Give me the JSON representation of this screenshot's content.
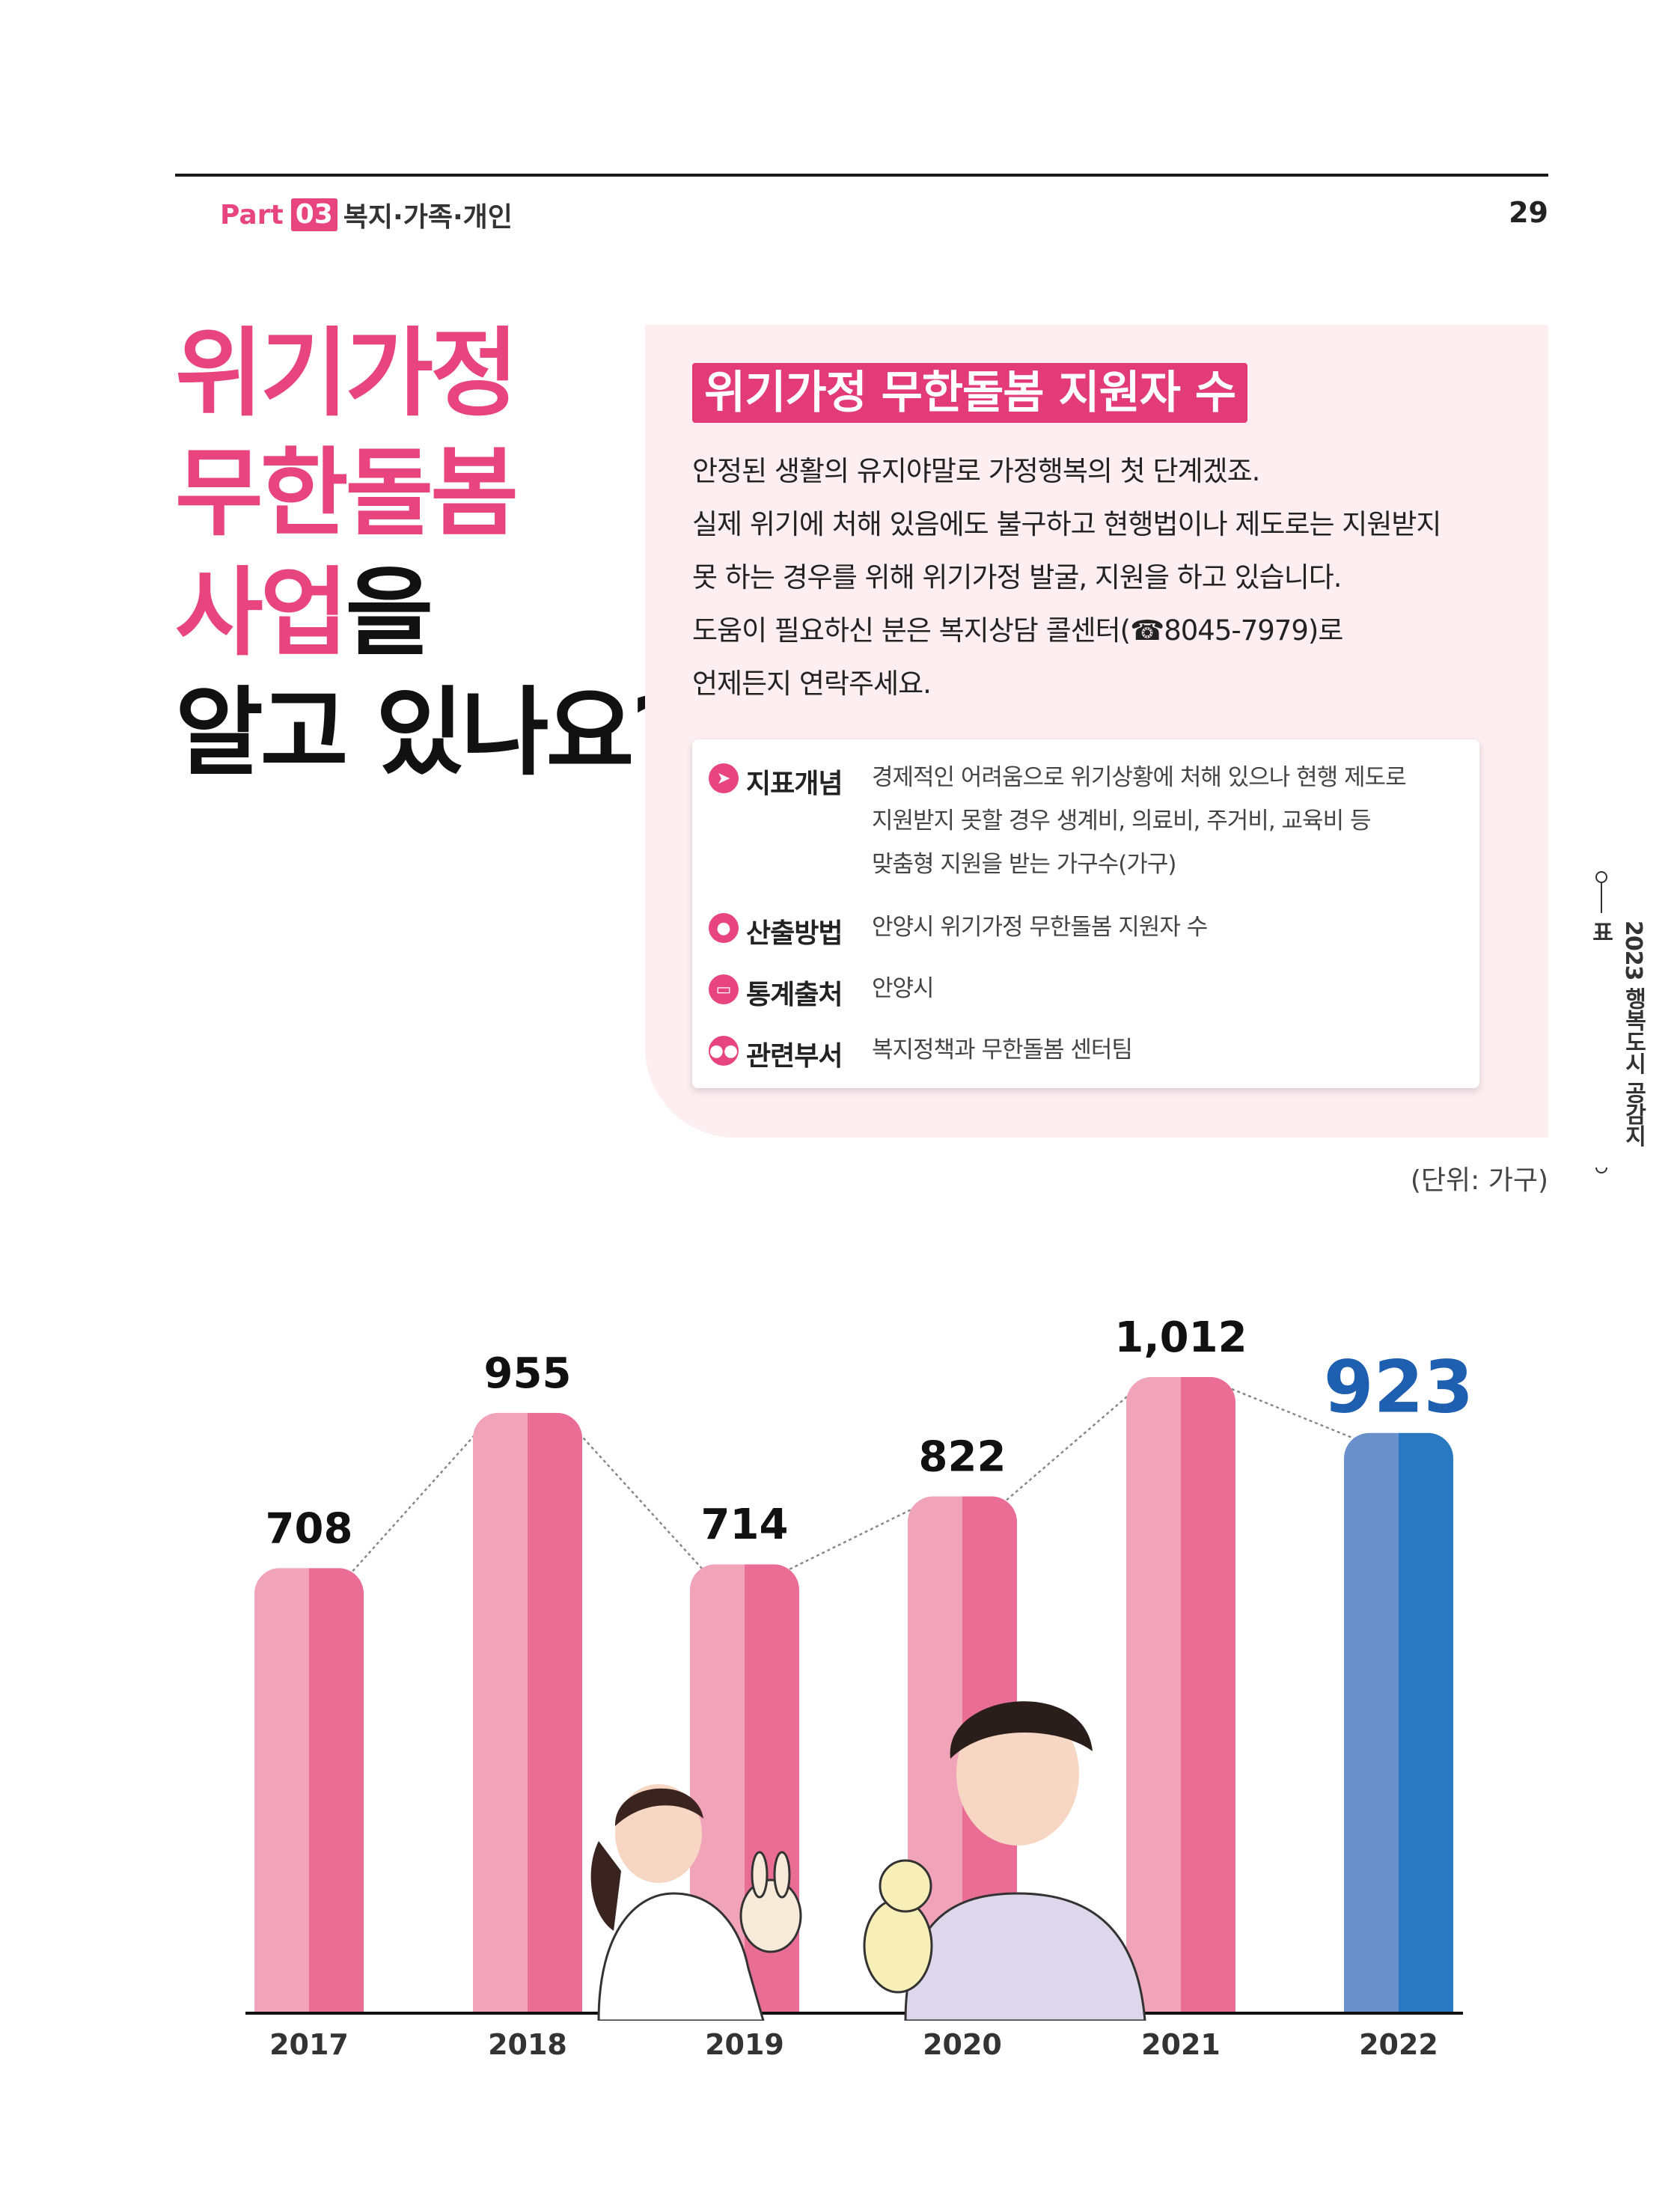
{
  "header": {
    "part_word": "Part",
    "part_number": "03",
    "part_title": "복지·가족·개인",
    "page_number": "29"
  },
  "headline": {
    "line1": "위기가정",
    "line2": "무한돌봄",
    "line3_pink": "사업",
    "line3_dark": "을",
    "line4": "알고 있나요?"
  },
  "panel": {
    "title": "위기가정 무한돌봄 지원자 수",
    "description": [
      "안정된 생활의 유지야말로 가정행복의 첫 단계겠죠.",
      "실제 위기에 처해 있음에도 불구하고 현행법이나 제도로는 지원받지",
      "못 하는 경우를 위해 위기가정 발굴, 지원을 하고 있습니다.",
      "도움이 필요하신 분은 복지상담 콜센터(☎8045-7979)로",
      "언제든지 연락주세요."
    ],
    "meta": [
      {
        "icon": "paper-plane-icon",
        "key": "지표개념",
        "lines": [
          "경제적인 어려움으로 위기상황에 처해 있으나 현행 제도로",
          "지원받지 못할 경우 생계비, 의료비, 주거비, 교육비 등",
          "맞춤형 지원을 받는 가구수(가구)"
        ]
      },
      {
        "icon": "chat-bubble-icon",
        "key": "산출방법",
        "lines": [
          "안양시 위기가정 무한돌봄 지원자 수"
        ]
      },
      {
        "icon": "monitor-icon",
        "key": "통계출처",
        "lines": [
          "안양시"
        ]
      },
      {
        "icon": "people-icon",
        "key": "관련부서",
        "lines": [
          "복지정책과 무한돌봄 센터팀"
        ]
      }
    ]
  },
  "side_label": "2023 행복도시 공감지표",
  "unit_label": "(단위: 가구)",
  "colors": {
    "accent_pink": "#e8457e",
    "bar_pink_light": "#f1a4b9",
    "bar_pink_dark": "#ea6d96",
    "bar_blue_light": "#6a90cc",
    "bar_blue_dark": "#2878c2",
    "highlight_value": "#1f5fb0"
  },
  "chart_data": {
    "type": "bar",
    "categories": [
      "2017",
      "2018",
      "2019",
      "2020",
      "2021",
      "2022"
    ],
    "values": [
      708,
      955,
      714,
      822,
      1012,
      923
    ],
    "value_labels": [
      "708",
      "955",
      "714",
      "822",
      "1,012",
      "923"
    ],
    "highlight_index": 5,
    "trend_line": true,
    "ylim": [
      0,
      1100
    ],
    "grid": false,
    "legend": "none"
  }
}
